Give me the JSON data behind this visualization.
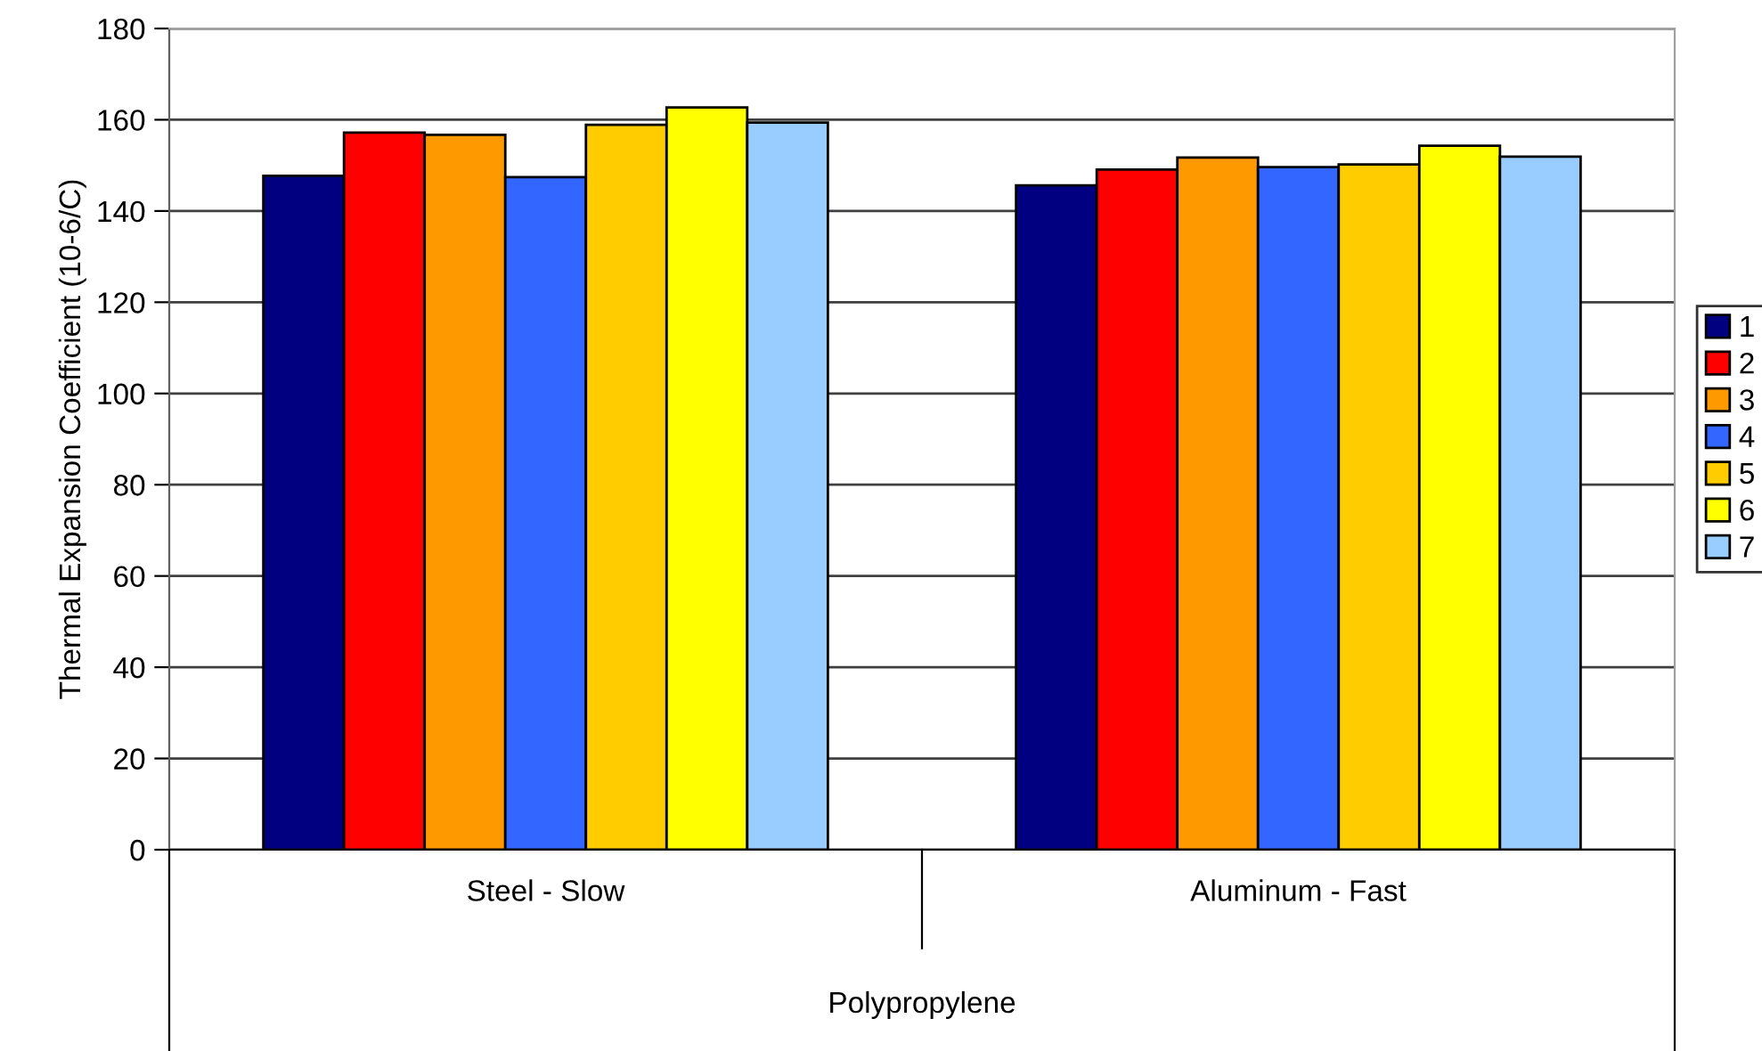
{
  "chart_data": {
    "type": "bar",
    "ylabel": "Thermal Expansion Coefficient (10-6/C)",
    "xlabel": "Polypropylene",
    "categories": [
      "Steel - Slow",
      "Aluminum - Fast"
    ],
    "series": [
      {
        "name": "1",
        "color": "#000080",
        "values": [
          147.7,
          145.6
        ]
      },
      {
        "name": "2",
        "color": "#ff0000",
        "values": [
          157.2,
          149.1
        ]
      },
      {
        "name": "3",
        "color": "#ff9900",
        "values": [
          156.7,
          151.7
        ]
      },
      {
        "name": "4",
        "color": "#3366ff",
        "values": [
          147.4,
          149.6
        ]
      },
      {
        "name": "5",
        "color": "#ffcc00",
        "values": [
          158.9,
          150.2
        ]
      },
      {
        "name": "6",
        "color": "#ffff00",
        "values": [
          162.7,
          154.3
        ]
      },
      {
        "name": "7",
        "color": "#99ccff",
        "values": [
          159.4,
          151.9
        ]
      }
    ],
    "ylim": [
      0,
      180
    ],
    "yticks": [
      0,
      20,
      40,
      60,
      80,
      100,
      120,
      140,
      160,
      180
    ],
    "grid": "y",
    "legend": "right"
  }
}
